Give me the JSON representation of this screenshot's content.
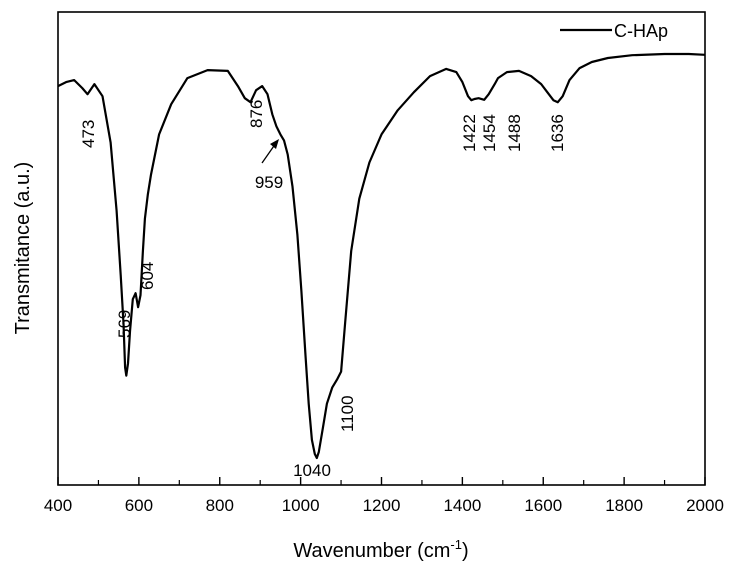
{
  "chart_data": {
    "type": "line",
    "xlabel": "Wavenumber (cm",
    "xlabel_superscript": "-1",
    "xlabel_suffix": ")",
    "ylabel": "Transmitance (a.u.)",
    "xlim": [
      400,
      2000
    ],
    "x_ticks": [
      400,
      600,
      800,
      1000,
      1200,
      1400,
      1600,
      1800,
      2000
    ],
    "x_tick_labels": [
      "400",
      "600",
      "800",
      "1000",
      "1200",
      "1400",
      "1600",
      "1800",
      "2000"
    ],
    "y_ticks_shown": false,
    "ylim": [
      0,
      100
    ],
    "grid": false,
    "legend_position": "top-right",
    "series": [
      {
        "name": "C-HAp",
        "color": "#000000",
        "x": [
          400,
          420,
          440,
          460,
          473,
          490,
          510,
          530,
          545,
          555,
          562,
          566,
          569,
          573,
          578,
          585,
          592,
          598,
          604,
          610,
          615,
          622,
          630,
          650,
          680,
          720,
          770,
          820,
          845,
          862,
          876,
          890,
          905,
          918,
          930,
          940,
          950,
          959,
          968,
          980,
          992,
          1002,
          1012,
          1020,
          1028,
          1035,
          1040,
          1045,
          1055,
          1065,
          1078,
          1090,
          1100,
          1110,
          1125,
          1145,
          1170,
          1200,
          1240,
          1280,
          1320,
          1360,
          1385,
          1400,
          1414,
          1422,
          1430,
          1440,
          1454,
          1465,
          1480,
          1488,
          1510,
          1540,
          1570,
          1595,
          1610,
          1625,
          1636,
          1648,
          1665,
          1690,
          1720,
          1760,
          1820,
          1900,
          1960,
          2000
        ],
        "values": [
          93,
          94,
          94.5,
          92.5,
          91,
          93.5,
          90.5,
          79,
          62,
          46,
          34,
          23,
          21,
          24,
          32,
          40,
          41.5,
          38,
          41,
          52,
          60,
          66,
          71,
          81,
          88.5,
          95,
          97,
          96.8,
          93,
          90,
          89,
          92,
          93,
          91,
          86,
          83,
          81,
          79.5,
          76,
          68,
          56,
          42,
          26,
          14,
          5,
          1.5,
          0.5,
          2,
          8,
          14,
          18,
          20,
          22,
          34,
          52,
          65,
          74,
          81,
          87,
          91.5,
          95.5,
          97.3,
          96.5,
          94,
          90.5,
          89.5,
          89.8,
          90,
          89.6,
          91,
          93.5,
          95,
          96.5,
          96.8,
          95.5,
          93.5,
          91.5,
          89.5,
          89,
          90.5,
          94.5,
          97.5,
          99,
          100,
          100.7,
          101,
          101,
          100.8
        ]
      }
    ],
    "peak_labels": [
      {
        "text": "473"
      },
      {
        "text": "569"
      },
      {
        "text": "604"
      },
      {
        "text": "876"
      },
      {
        "text": "959"
      },
      {
        "text": "1040"
      },
      {
        "text": "1100"
      },
      {
        "text": "1422"
      },
      {
        "text": "1454"
      },
      {
        "text": "1488"
      },
      {
        "text": "1636"
      }
    ]
  }
}
